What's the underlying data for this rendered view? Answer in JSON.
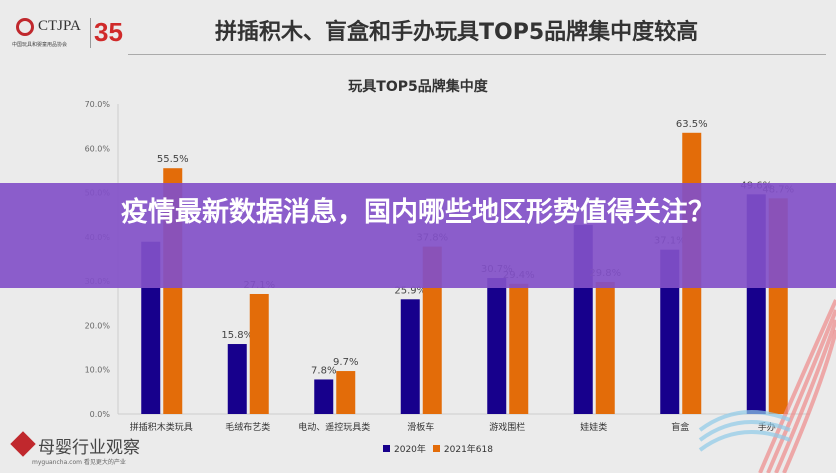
{
  "header": {
    "logo_text": "CTJPA",
    "logo_sub": "中国玩具和婴童用品协会",
    "logo_number": "35",
    "title": "拼插积木、盲盒和手办玩具TOP5品牌集中度较高"
  },
  "chart_data": {
    "type": "bar",
    "title": "玩具TOP5品牌集中度",
    "categories": [
      "拼插积木类玩具",
      "毛绒布艺类",
      "电动、遥控玩具类",
      "滑板车",
      "游戏围栏",
      "娃娃类",
      "盲盒",
      "手办"
    ],
    "series": [
      {
        "name": "2020年",
        "color": "#17008c",
        "values": [
          38.9,
          15.8,
          7.8,
          25.9,
          30.7,
          42.7,
          37.1,
          49.6
        ],
        "labels": [
          "",
          "15.8%",
          "7.8%",
          "25.9%",
          "30.7%",
          "",
          "37.1%",
          "49.6%"
        ]
      },
      {
        "name": "2021年618",
        "color": "#e36c09",
        "values": [
          55.5,
          27.1,
          9.7,
          37.8,
          29.4,
          29.8,
          63.5,
          48.7
        ],
        "labels": [
          "55.5%",
          "27.1%",
          "9.7%",
          "37.8%",
          "29.4%",
          "29.8%",
          "63.5%",
          "48.7%"
        ]
      }
    ],
    "yticks": [
      "0.0%",
      "10.0%",
      "20.0%",
      "30.0%",
      "40.0%",
      "50.0%",
      "60.0%",
      "70.0%"
    ],
    "ylim": [
      0,
      70
    ],
    "legend": "bottom"
  },
  "banner": {
    "text": "疫情最新数据消息，国内哪些地区形势值得关注？"
  },
  "watermark": {
    "name": "母婴行业观察",
    "url": "myguancha.com 看见更大的产业"
  }
}
